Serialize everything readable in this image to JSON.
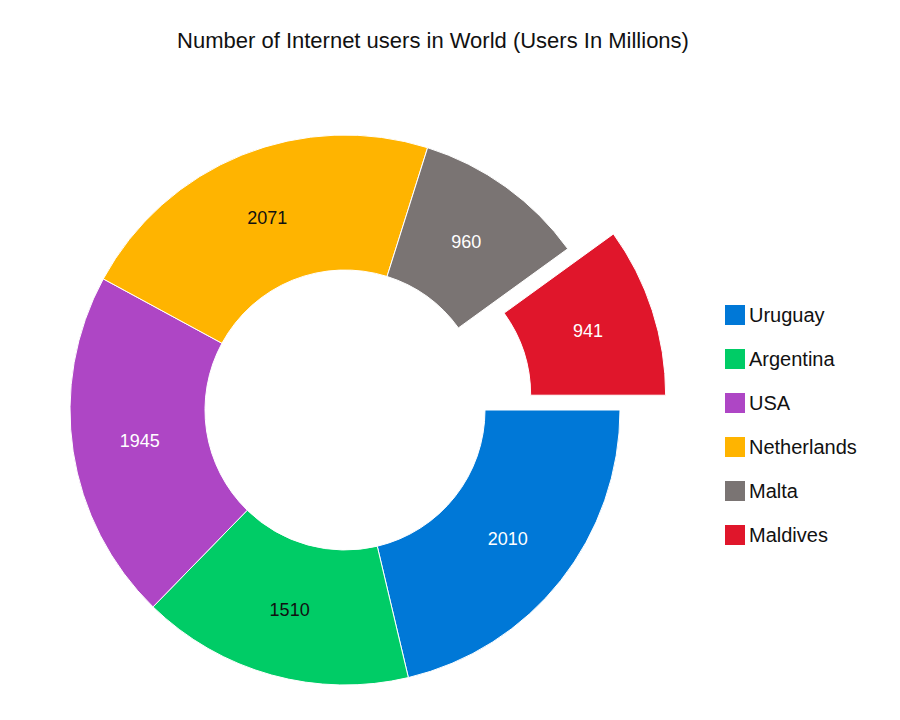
{
  "chart_data": {
    "type": "pie",
    "title": "Number of Internet users in World (Users In Millions)",
    "categories": [
      "Uruguay",
      "Argentina",
      "USA",
      "Netherlands",
      "Malta",
      "Maldives"
    ],
    "values": [
      2010,
      1510,
      1945,
      2071,
      960,
      941
    ],
    "colors": [
      "#0078d7",
      "#00cc66",
      "#ae46c5",
      "#ffb400",
      "#7a7473",
      "#e0162b"
    ],
    "data_labels": true,
    "legend": "right"
  }
}
